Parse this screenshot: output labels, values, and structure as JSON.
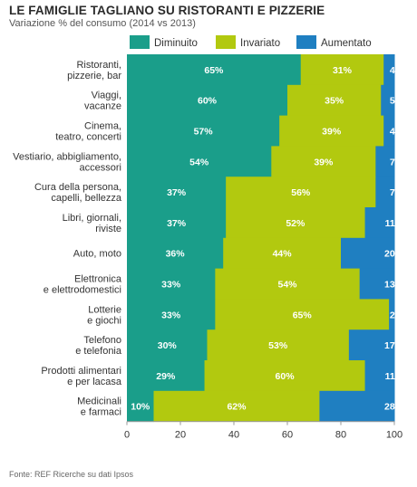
{
  "title": "LE FAMIGLIE TAGLIANO SU RISTORANTI E PIZZERIE",
  "subtitle": "Variazione % del consumo (2014 vs 2013)",
  "source": "Fonte: REF Ricerche su dati Ipsos",
  "chart_data": {
    "type": "bar",
    "orientation": "horizontal",
    "stacked": true,
    "categories": [
      [
        "Ristoranti,",
        "pizzerie, bar"
      ],
      [
        "Viaggi,",
        "vacanze"
      ],
      [
        "Cinema,",
        "teatro, concerti"
      ],
      [
        "Vestiario, abbigliamento,",
        "accessori"
      ],
      [
        "Cura della persona,",
        "capelli, bellezza"
      ],
      [
        "Libri, giornali,",
        "riviste"
      ],
      [
        "Auto, moto"
      ],
      [
        "Elettronica",
        "e elettrodomestici"
      ],
      [
        "Lotterie",
        "e giochi"
      ],
      [
        "Telefono",
        "e telefonia"
      ],
      [
        "Prodotti alimentari",
        "e per lacasa"
      ],
      [
        "Medicinali",
        "e farmaci"
      ]
    ],
    "series": [
      {
        "name": "Diminuito",
        "color": "#1a9e8a",
        "values": [
          65,
          60,
          57,
          54,
          37,
          37,
          36,
          33,
          33,
          30,
          29,
          10
        ]
      },
      {
        "name": "Invariato",
        "color": "#b2c90f",
        "values": [
          31,
          35,
          39,
          39,
          56,
          52,
          44,
          54,
          65,
          53,
          60,
          62
        ]
      },
      {
        "name": "Aumentato",
        "color": "#1f7fc1",
        "values": [
          4,
          5,
          4,
          7,
          7,
          11,
          20,
          13,
          2,
          17,
          11,
          28
        ]
      }
    ],
    "value_suffix": "%",
    "xlim": [
      0,
      100
    ],
    "xticks": [
      0,
      20,
      40,
      60,
      80,
      100
    ],
    "legend_position": "top"
  }
}
